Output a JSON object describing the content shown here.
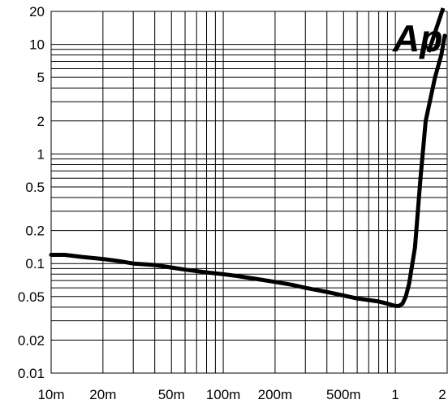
{
  "chart_data": {
    "type": "line",
    "title": "",
    "xlabel": "",
    "ylabel": "",
    "x_scale": "log",
    "y_scale": "log",
    "xlim": [
      0.01,
      2
    ],
    "ylim": [
      0.01,
      20
    ],
    "grid": true,
    "x_ticks": [
      {
        "value": 0.01,
        "label": "10m"
      },
      {
        "value": 0.02,
        "label": "20m"
      },
      {
        "value": 0.05,
        "label": "50m"
      },
      {
        "value": 0.1,
        "label": "100m"
      },
      {
        "value": 0.2,
        "label": "200m"
      },
      {
        "value": 0.5,
        "label": "500m"
      },
      {
        "value": 1,
        "label": "1"
      },
      {
        "value": 2,
        "label": "2"
      }
    ],
    "y_ticks": [
      {
        "value": 20,
        "label": "20"
      },
      {
        "value": 10,
        "label": "10"
      },
      {
        "value": 5,
        "label": "5"
      },
      {
        "value": 2,
        "label": "2"
      },
      {
        "value": 1,
        "label": "1"
      },
      {
        "value": 0.5,
        "label": "0.5"
      },
      {
        "value": 0.2,
        "label": "0.2"
      },
      {
        "value": 0.1,
        "label": "0.1"
      },
      {
        "value": 0.05,
        "label": "0.05"
      },
      {
        "value": 0.02,
        "label": "0.02"
      },
      {
        "value": 0.01,
        "label": "0.01"
      }
    ],
    "series": [
      {
        "color": "#000000",
        "x": [
          0.01,
          0.012,
          0.015,
          0.02,
          0.025,
          0.03,
          0.04,
          0.05,
          0.06,
          0.08,
          0.1,
          0.12,
          0.15,
          0.2,
          0.25,
          0.3,
          0.4,
          0.5,
          0.6,
          0.8,
          0.9,
          1.0,
          1.05,
          1.1,
          1.15,
          1.2,
          1.3,
          1.4,
          1.5,
          1.7,
          1.85,
          2.0
        ],
        "y": [
          0.12,
          0.12,
          0.115,
          0.11,
          0.105,
          0.1,
          0.097,
          0.092,
          0.088,
          0.083,
          0.08,
          0.077,
          0.073,
          0.068,
          0.064,
          0.06,
          0.055,
          0.051,
          0.048,
          0.045,
          0.043,
          0.041,
          0.041,
          0.043,
          0.05,
          0.065,
          0.14,
          0.6,
          2.0,
          5.0,
          8.0,
          12.0
        ]
      }
    ]
  },
  "logo": {
    "text": "Ap"
  }
}
